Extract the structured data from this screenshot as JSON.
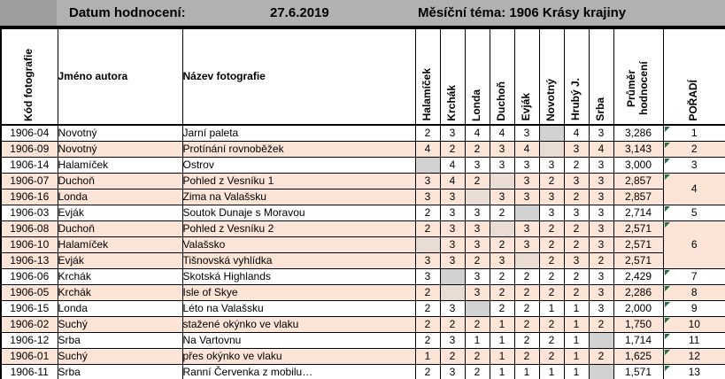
{
  "topbar": {
    "date_label": "Datum hodnocení:",
    "date_value": "27.6.2019",
    "theme_label": "Měsíční téma: 1906 Krásy krajiny"
  },
  "colors": {
    "bar_gray": "#b1b1b1",
    "corner_gray": "#9d9d9d",
    "row_peach": "#fce4d6",
    "crossed_cell_gray": "#d2d2d2",
    "error_triangle_green": "#217346"
  },
  "table": {
    "headers": {
      "code": "Kód fotografie",
      "author": "Jméno autora",
      "title": "Název fotografie",
      "judges": [
        "Halamíček",
        "Krchák",
        "Londa",
        "Duchoň",
        "Evják",
        "Novotný",
        "Hrubý J.",
        "Srba"
      ],
      "average": "Průměr hodnocení",
      "rank": "POŘADÍ"
    },
    "crossed_marker": "X",
    "rows": [
      {
        "code": "1906-04",
        "author": "Novotný",
        "title": "Jarní paleta",
        "scores": [
          "2",
          "3",
          "4",
          "4",
          "3",
          "X",
          "4",
          "3"
        ],
        "average": "3,286",
        "rank": "1",
        "rank_span": 1,
        "shade": false
      },
      {
        "code": "1906-09",
        "author": "Novotný",
        "title": "Protínání rovnoběžek",
        "scores": [
          "4",
          "2",
          "2",
          "3",
          "4",
          "X",
          "3",
          "4"
        ],
        "average": "3,143",
        "rank": "2",
        "rank_span": 1,
        "shade": true
      },
      {
        "code": "1906-14",
        "author": "Halamíček",
        "title": "Ostrov",
        "scores": [
          "X",
          "4",
          "3",
          "3",
          "3",
          "3",
          "2",
          "3"
        ],
        "average": "3,000",
        "rank": "3",
        "rank_span": 1,
        "shade": false
      },
      {
        "code": "1906-07",
        "author": "Duchoň",
        "title": "Pohled z Vesníku 1",
        "scores": [
          "3",
          "4",
          "2",
          "X",
          "3",
          "2",
          "3",
          "3"
        ],
        "average": "2,857",
        "rank": "4",
        "rank_span": 2,
        "shade": true
      },
      {
        "code": "1906-16",
        "author": "Londa",
        "title": "Zima na Valašsku",
        "scores": [
          "3",
          "3",
          "X",
          "3",
          "3",
          "3",
          "2",
          "3"
        ],
        "average": "2,857",
        "rank": null,
        "rank_span": 0,
        "shade": true
      },
      {
        "code": "1906-03",
        "author": "Evják",
        "title": "Soutok Dunaje s Moravou",
        "scores": [
          "2",
          "3",
          "3",
          "2",
          "X",
          "3",
          "3",
          "3"
        ],
        "average": "2,714",
        "rank": "5",
        "rank_span": 1,
        "shade": false
      },
      {
        "code": "1906-08",
        "author": "Duchoň",
        "title": "Pohled z Vesníku 2",
        "scores": [
          "2",
          "3",
          "3",
          "X",
          "3",
          "2",
          "2",
          "3"
        ],
        "average": "2,571",
        "rank": "6",
        "rank_span": 3,
        "shade": true
      },
      {
        "code": "1906-10",
        "author": "Halamíček",
        "title": "Valašsko",
        "scores": [
          "X",
          "3",
          "3",
          "2",
          "3",
          "2",
          "2",
          "3"
        ],
        "average": "2,571",
        "rank": null,
        "rank_span": 0,
        "shade": true
      },
      {
        "code": "1906-13",
        "author": "Evják",
        "title": "Tišnovská vyhlídka",
        "scores": [
          "3",
          "3",
          "2",
          "3",
          "X",
          "2",
          "3",
          "2"
        ],
        "average": "2,571",
        "rank": null,
        "rank_span": 0,
        "shade": true
      },
      {
        "code": "1906-06",
        "author": "Krchák",
        "title": "Skotská Highlands",
        "scores": [
          "3",
          "X",
          "3",
          "2",
          "2",
          "2",
          "2",
          "3"
        ],
        "average": "2,429",
        "rank": "7",
        "rank_span": 1,
        "shade": false
      },
      {
        "code": "1906-05",
        "author": "Krchák",
        "title": "Isle of Skye",
        "scores": [
          "2",
          "X",
          "3",
          "2",
          "2",
          "2",
          "2",
          "3"
        ],
        "average": "2,286",
        "rank": "8",
        "rank_span": 1,
        "shade": true
      },
      {
        "code": "1906-15",
        "author": "Londa",
        "title": "Léto na Valašsku",
        "scores": [
          "2",
          "3",
          "X",
          "2",
          "2",
          "1",
          "1",
          "3"
        ],
        "average": "2,000",
        "rank": "9",
        "rank_span": 1,
        "shade": false
      },
      {
        "code": "1906-02",
        "author": "Suchý",
        "title": "stažené okýnko ve vlaku",
        "scores": [
          "2",
          "2",
          "2",
          "1",
          "2",
          "2",
          "1",
          "2"
        ],
        "average": "1,750",
        "rank": "10",
        "rank_span": 1,
        "shade": true
      },
      {
        "code": "1906-12",
        "author": "Srba",
        "title": "Na Vartovnu",
        "scores": [
          "2",
          "3",
          "1",
          "1",
          "2",
          "2",
          "1",
          "X"
        ],
        "average": "1,714",
        "rank": "11",
        "rank_span": 1,
        "shade": false
      },
      {
        "code": "1906-01",
        "author": "Suchý",
        "title": "přes okýnko ve vlaku",
        "scores": [
          "1",
          "2",
          "2",
          "1",
          "2",
          "2",
          "1",
          "2"
        ],
        "average": "1,625",
        "rank": "12",
        "rank_span": 1,
        "shade": true
      },
      {
        "code": "1906-11",
        "author": "Srba",
        "title": "Ranní Červenka z mobilu…",
        "scores": [
          "2",
          "3",
          "2",
          "1",
          "1",
          "1",
          "1",
          "X"
        ],
        "average": "1,571",
        "rank": "13",
        "rank_span": 1,
        "shade": false
      }
    ]
  }
}
